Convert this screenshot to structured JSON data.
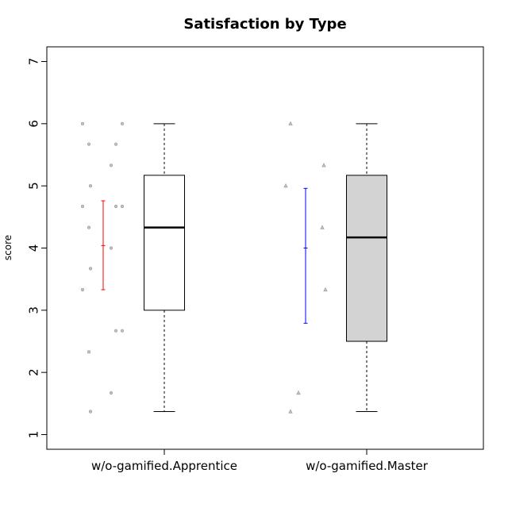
{
  "chart_data": {
    "type": "boxplot",
    "title": "Satisfaction by Type",
    "xlabel": "",
    "ylabel": "score",
    "ylim": [
      0.75,
      7.25
    ],
    "yticks": [
      1,
      2,
      3,
      4,
      5,
      6,
      7
    ],
    "grid": false,
    "categories": [
      "w/o-gamified.Apprentice",
      "w/o-gamified.Master"
    ],
    "boxes": [
      {
        "category": "w/o-gamified.Apprentice",
        "min": 1.37,
        "q1": 3.0,
        "median": 4.33,
        "q3": 5.17,
        "max": 6.0,
        "fill": "#ffffff"
      },
      {
        "category": "w/o-gamified.Master",
        "min": 1.37,
        "q1": 2.5,
        "median": 4.17,
        "q3": 5.17,
        "max": 6.0,
        "fill": "#d3d3d3"
      }
    ],
    "errorbars": [
      {
        "category": "w/o-gamified.Apprentice",
        "mean": 4.04,
        "lower": 3.33,
        "upper": 4.76,
        "color": "#ff0000"
      },
      {
        "category": "w/o-gamified.Master",
        "mean": 4.0,
        "lower": 2.79,
        "upper": 4.96,
        "color": "#0000ff"
      }
    ],
    "points": [
      {
        "category": "w/o-gamified.Apprentice",
        "marker": "circle",
        "values": [
          6.0,
          6.0,
          5.67,
          5.67,
          5.33,
          5.0,
          4.67,
          4.67,
          4.67,
          4.33,
          4.0,
          3.67,
          3.33,
          2.67,
          2.67,
          2.33,
          1.67,
          1.37
        ]
      },
      {
        "category": "w/o-gamified.Master",
        "marker": "triangle",
        "values": [
          6.0,
          5.33,
          5.0,
          4.33,
          3.33,
          1.67,
          1.37
        ]
      }
    ]
  }
}
